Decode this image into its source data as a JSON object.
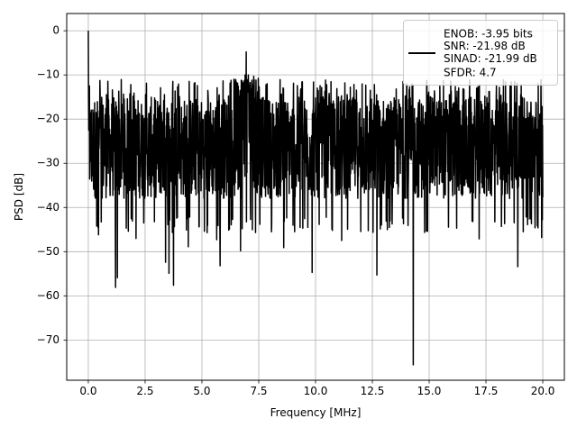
{
  "chart_data": {
    "type": "line",
    "title": "",
    "xlabel": "Frequency [MHz]",
    "ylabel": "PSD [dB]",
    "xlim": [
      -0.95,
      20.95
    ],
    "ylim": [
      -79.1,
      3.9
    ],
    "x_ticks": [
      0.0,
      2.5,
      5.0,
      7.5,
      10.0,
      12.5,
      15.0,
      17.5,
      20.0
    ],
    "x_tick_labels": [
      "0.0",
      "2.5",
      "5.0",
      "7.5",
      "10.0",
      "12.5",
      "15.0",
      "17.5",
      "20.0"
    ],
    "y_ticks": [
      0,
      -10,
      -20,
      -30,
      -40,
      -50,
      -60,
      -70
    ],
    "y_tick_labels": [
      "0",
      "−10",
      "−20",
      "−30",
      "−40",
      "−50",
      "−60",
      "−70"
    ],
    "grid": true,
    "legend_position": "top-right",
    "legend_lines": [
      "ENOB: -3.95 bits",
      "SNR: -21.98 dB",
      "SINAD: -21.99 dB",
      "SFDR: 4.7"
    ],
    "series": [
      {
        "color": "#000000",
        "x_range": [
          0,
          20
        ],
        "noise_floor_band_db": [
          -42,
          -13
        ],
        "typical_dip_db": -46,
        "peaks": [
          {
            "x": 0.0,
            "y": 0.0
          },
          {
            "x": 0.05,
            "y": -12.5
          },
          {
            "x": 6.95,
            "y": -4.8
          },
          {
            "x": 13.85,
            "y": -11.5
          },
          {
            "x": 14.25,
            "y": -12.0
          }
        ],
        "dips": [
          {
            "x": 0.45,
            "y": -46.2
          },
          {
            "x": 1.2,
            "y": -58.1
          },
          {
            "x": 1.28,
            "y": -55.9
          },
          {
            "x": 2.1,
            "y": -47.0
          },
          {
            "x": 3.4,
            "y": -52.4
          },
          {
            "x": 3.55,
            "y": -54.9
          },
          {
            "x": 3.75,
            "y": -57.6
          },
          {
            "x": 4.4,
            "y": -48.9
          },
          {
            "x": 5.65,
            "y": -47.3
          },
          {
            "x": 5.8,
            "y": -53.2
          },
          {
            "x": 6.7,
            "y": -49.8
          },
          {
            "x": 8.6,
            "y": -49.1
          },
          {
            "x": 9.85,
            "y": -54.7
          },
          {
            "x": 11.15,
            "y": -47.5
          },
          {
            "x": 12.7,
            "y": -55.3
          },
          {
            "x": 14.3,
            "y": -75.6
          },
          {
            "x": 17.2,
            "y": -47.1
          },
          {
            "x": 18.9,
            "y": -53.4
          },
          {
            "x": 19.95,
            "y": -46.8
          }
        ]
      }
    ]
  }
}
